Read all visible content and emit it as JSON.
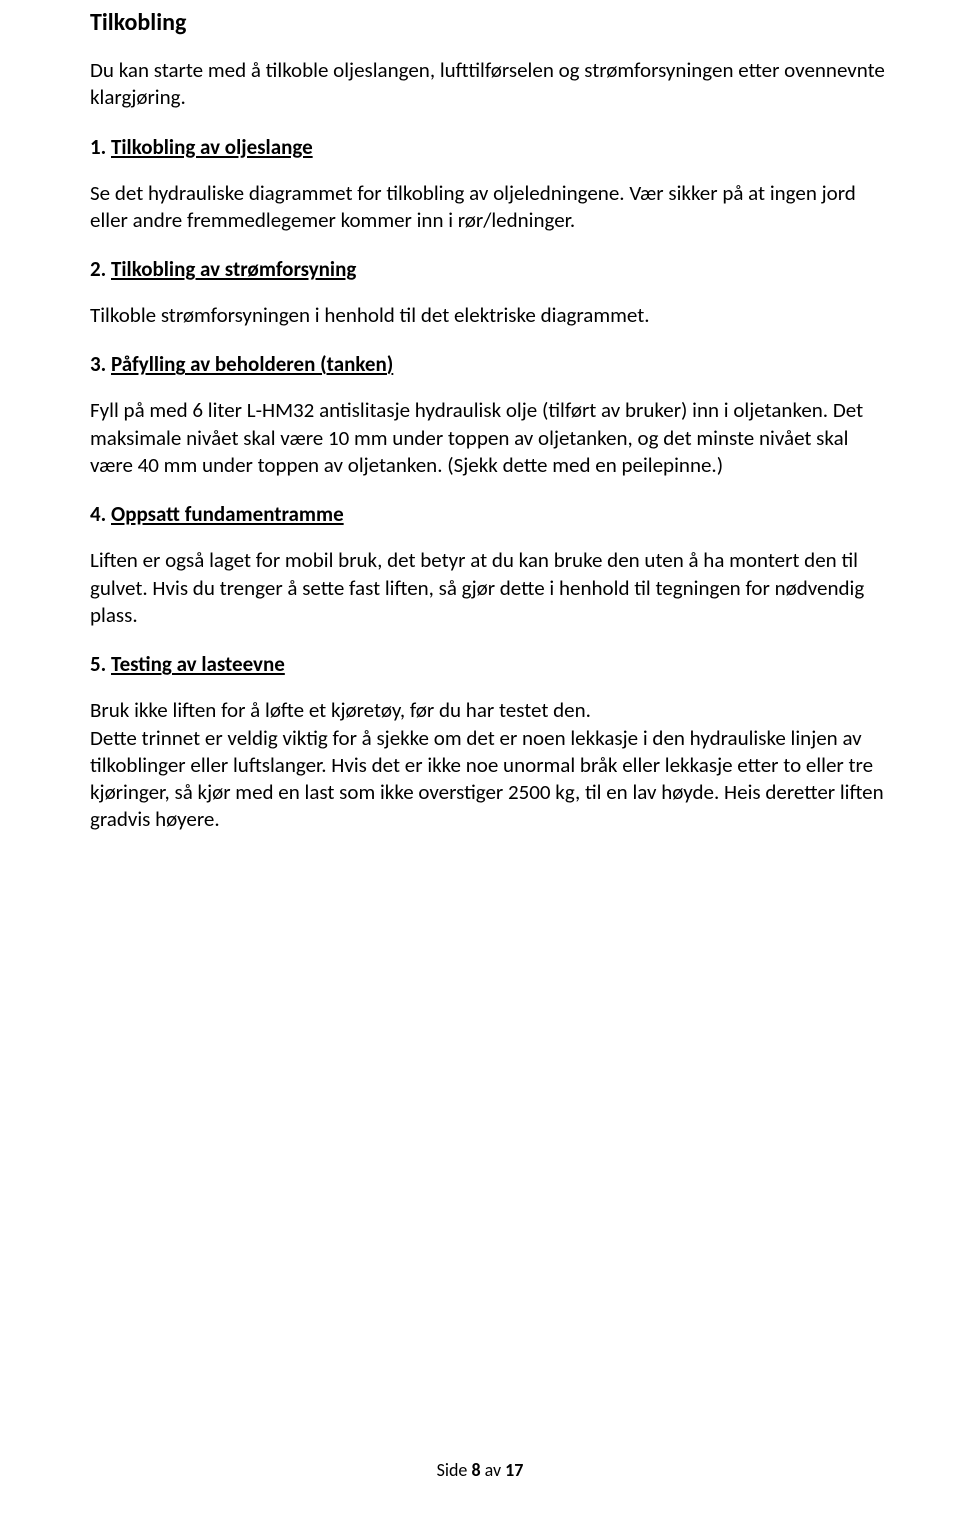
{
  "heading_main": "Tilkobling",
  "intro": "Du kan starte med å tilkoble oljeslangen, lufttilførselen og strømforsyningen etter ovennevnte klargjøring.",
  "section1": {
    "num": "1. ",
    "title": "Tilkobling av oljeslange",
    "body": "Se det hydrauliske diagrammet for tilkobling av oljeledningene. Vær sikker på at ingen jord eller andre fremmedlegemer kommer inn i rør/ledninger."
  },
  "section2": {
    "num": "2. ",
    "title": "Tilkobling av strømforsyning",
    "body": "Tilkoble strømforsyningen i henhold til det elektriske diagrammet."
  },
  "section3": {
    "num": "3. ",
    "title": "Påfylling av beholderen (tanken)",
    "body": "Fyll på med 6 liter L-HM32 antislitasje hydraulisk olje (tilført av bruker) inn i oljetanken. Det maksimale nivået skal være 10 mm under toppen av oljetanken, og det minste nivået skal være 40 mm under toppen av oljetanken. (Sjekk dette med en peilepinne.)"
  },
  "section4": {
    "num": "4. ",
    "title": "Oppsatt fundamentramme",
    "body": "Liften er også laget for mobil bruk, det betyr at du kan bruke den uten å ha montert den til gulvet. Hvis du trenger å sette fast liften, så gjør dette i henhold til tegningen for nødvendig plass."
  },
  "section5": {
    "num": "5. ",
    "title": "Testing av lasteevne",
    "body": "Bruk ikke liften for å løfte et kjøretøy, før du har testet den.\nDette trinnet er veldig viktig for å sjekke om det er noen lekkasje i den hydrauliske linjen av tilkoblinger eller luftslanger. Hvis det er ikke noe unormal bråk eller lekkasje etter to eller tre kjøringer, så kjør med en last som ikke overstiger 2500 kg, til en lav høyde. Heis deretter liften gradvis høyere."
  },
  "footer": {
    "pre": "Side ",
    "page": "8",
    "post": " av ",
    "total": "17"
  }
}
